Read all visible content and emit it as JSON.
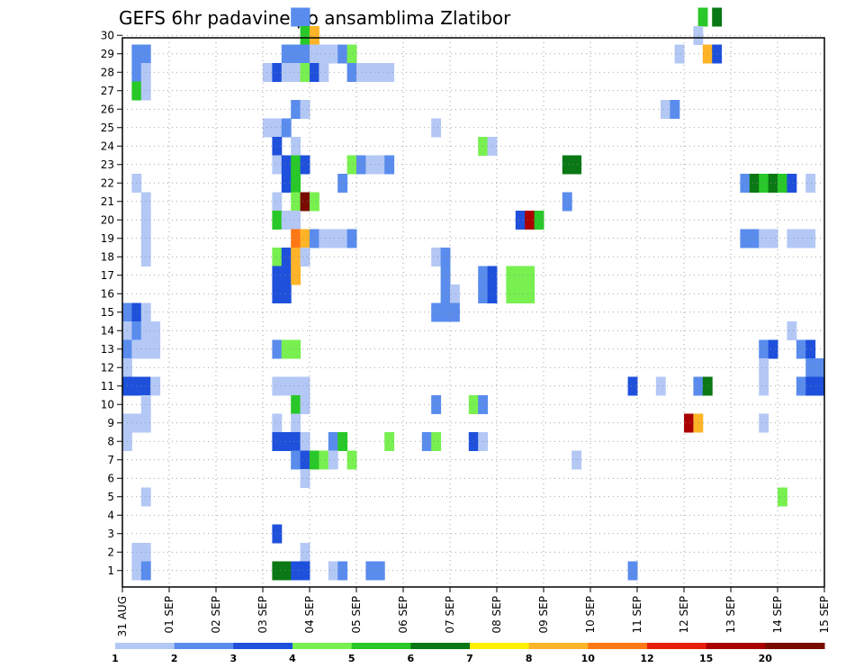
{
  "chart_data": {
    "type": "heatmap",
    "title": "GEFS 6hr padavine po ansamblima Zlatibor",
    "x_tick_labels": [
      "31 AUG",
      "01 SEP",
      "02 SEP",
      "03 SEP",
      "04 SEP",
      "05 SEP",
      "06 SEP",
      "07 SEP",
      "08 SEP",
      "09 SEP",
      "10 SEP",
      "11 SEP",
      "12 SEP",
      "13 SEP",
      "14 SEP",
      "15 SEP"
    ],
    "y_tick_labels": [
      "1",
      "2",
      "3",
      "4",
      "5",
      "6",
      "7",
      "8",
      "9",
      "10",
      "11",
      "12",
      "13",
      "14",
      "15",
      "16",
      "17",
      "18",
      "19",
      "20",
      "21",
      "22",
      "23",
      "24",
      "25",
      "26",
      "27",
      "28",
      "29",
      "30"
    ],
    "xlim": [
      0,
      15
    ],
    "ylim": [
      0,
      30
    ],
    "grid": true,
    "legend_placement": "bottom",
    "colorbar": {
      "labels": [
        "1",
        "2",
        "3",
        "4",
        "5",
        "6",
        "7",
        "8",
        "10",
        "12",
        "15",
        "20"
      ],
      "colors": [
        "#b4c8f5",
        "#5a8ced",
        "#1e50dc",
        "#78f050",
        "#28c828",
        "#0a7814",
        "#fff000",
        "#ffb428",
        "#ff7814",
        "#e61e0a",
        "#aa0000",
        "#780a00"
      ]
    },
    "values_note_units": "mm per 6h, class index into colorbar",
    "cells": [
      [
        30,
        3.6,
        2
      ],
      [
        30,
        3.8,
        2
      ],
      [
        30,
        12.3,
        5
      ],
      [
        30,
        12.6,
        6
      ],
      [
        29,
        3.8,
        5
      ],
      [
        29,
        4.0,
        8
      ],
      [
        29,
        12.2,
        1
      ],
      [
        28,
        0.2,
        2
      ],
      [
        28,
        0.4,
        2
      ],
      [
        28,
        3.4,
        2
      ],
      [
        28,
        3.6,
        2
      ],
      [
        28,
        3.8,
        2
      ],
      [
        28,
        4.0,
        1
      ],
      [
        28,
        4.2,
        1
      ],
      [
        28,
        4.4,
        1
      ],
      [
        28,
        4.6,
        2
      ],
      [
        28,
        4.8,
        4
      ],
      [
        28,
        11.8,
        1
      ],
      [
        28,
        12.4,
        8
      ],
      [
        28,
        12.6,
        3
      ],
      [
        27,
        0.2,
        2
      ],
      [
        27,
        0.4,
        1
      ],
      [
        27,
        3.0,
        1
      ],
      [
        27,
        3.2,
        3
      ],
      [
        27,
        3.4,
        1
      ],
      [
        27,
        3.6,
        1
      ],
      [
        27,
        3.8,
        4
      ],
      [
        27,
        4.0,
        3
      ],
      [
        27,
        4.2,
        1
      ],
      [
        27,
        4.8,
        2
      ],
      [
        27,
        5.0,
        1
      ],
      [
        27,
        5.2,
        1
      ],
      [
        27,
        5.4,
        1
      ],
      [
        27,
        5.6,
        1
      ],
      [
        26,
        0.2,
        5
      ],
      [
        26,
        0.4,
        1
      ],
      [
        25,
        3.6,
        2
      ],
      [
        25,
        3.8,
        1
      ],
      [
        25,
        11.5,
        1
      ],
      [
        25,
        11.7,
        2
      ],
      [
        24,
        3.0,
        1
      ],
      [
        24,
        3.2,
        1
      ],
      [
        24,
        3.4,
        2
      ],
      [
        24,
        6.6,
        1
      ],
      [
        23,
        3.2,
        3
      ],
      [
        23,
        3.6,
        1
      ],
      [
        23,
        7.6,
        4
      ],
      [
        23,
        7.8,
        1
      ],
      [
        22,
        3.2,
        1
      ],
      [
        22,
        3.4,
        3
      ],
      [
        22,
        3.6,
        5
      ],
      [
        22,
        3.8,
        3
      ],
      [
        22,
        4.8,
        4
      ],
      [
        22,
        5.0,
        2
      ],
      [
        22,
        5.2,
        1
      ],
      [
        22,
        5.4,
        1
      ],
      [
        22,
        5.6,
        2
      ],
      [
        22,
        9.4,
        6
      ],
      [
        22,
        9.6,
        6
      ],
      [
        21,
        0.2,
        1
      ],
      [
        21,
        3.4,
        3
      ],
      [
        21,
        3.6,
        5
      ],
      [
        21,
        4.6,
        2
      ],
      [
        21,
        13.2,
        2
      ],
      [
        21,
        13.4,
        6
      ],
      [
        21,
        13.6,
        5
      ],
      [
        21,
        13.8,
        6
      ],
      [
        21,
        14.0,
        5
      ],
      [
        21,
        14.2,
        3
      ],
      [
        21,
        14.6,
        1
      ],
      [
        20,
        0.4,
        1
      ],
      [
        20,
        3.2,
        1
      ],
      [
        20,
        3.6,
        4
      ],
      [
        20,
        3.8,
        12
      ],
      [
        20,
        4.0,
        4
      ],
      [
        20,
        9.4,
        2
      ],
      [
        19,
        0.4,
        1
      ],
      [
        19,
        3.2,
        5
      ],
      [
        19,
        3.4,
        1
      ],
      [
        19,
        3.6,
        1
      ],
      [
        19,
        8.4,
        3
      ],
      [
        19,
        8.6,
        11
      ],
      [
        19,
        8.8,
        5
      ],
      [
        18,
        0.4,
        1
      ],
      [
        18,
        3.6,
        9
      ],
      [
        18,
        3.8,
        8
      ],
      [
        18,
        4.0,
        2
      ],
      [
        18,
        4.2,
        1
      ],
      [
        18,
        4.4,
        1
      ],
      [
        18,
        4.6,
        1
      ],
      [
        18,
        4.8,
        2
      ],
      [
        18,
        13.2,
        2
      ],
      [
        18,
        13.4,
        2
      ],
      [
        18,
        13.6,
        1
      ],
      [
        18,
        13.8,
        1
      ],
      [
        18,
        14.2,
        1
      ],
      [
        18,
        14.4,
        1
      ],
      [
        18,
        14.6,
        1
      ],
      [
        17,
        0.4,
        1
      ],
      [
        17,
        3.2,
        4
      ],
      [
        17,
        3.4,
        3
      ],
      [
        17,
        3.6,
        8
      ],
      [
        17,
        3.8,
        1
      ],
      [
        17,
        6.6,
        1
      ],
      [
        17,
        6.8,
        2
      ],
      [
        16,
        3.2,
        3
      ],
      [
        16,
        3.4,
        3
      ],
      [
        16,
        3.6,
        8
      ],
      [
        16,
        6.8,
        2
      ],
      [
        16,
        7.6,
        2
      ],
      [
        16,
        7.8,
        3
      ],
      [
        16,
        8.2,
        4
      ],
      [
        16,
        8.4,
        4
      ],
      [
        16,
        8.6,
        4
      ],
      [
        15,
        3.2,
        3
      ],
      [
        15,
        3.4,
        3
      ],
      [
        15,
        6.8,
        2
      ],
      [
        15,
        7.0,
        1
      ],
      [
        15,
        7.6,
        2
      ],
      [
        15,
        7.8,
        3
      ],
      [
        15,
        8.2,
        4
      ],
      [
        15,
        8.4,
        4
      ],
      [
        15,
        8.6,
        4
      ],
      [
        14,
        0.0,
        2
      ],
      [
        14,
        0.2,
        3
      ],
      [
        14,
        0.4,
        1
      ],
      [
        14,
        6.6,
        2
      ],
      [
        14,
        6.8,
        2
      ],
      [
        14,
        7.0,
        2
      ],
      [
        13,
        0.0,
        1
      ],
      [
        13,
        0.2,
        2
      ],
      [
        13,
        0.4,
        1
      ],
      [
        13,
        0.6,
        1
      ],
      [
        13,
        14.2,
        1
      ],
      [
        12,
        0.0,
        2
      ],
      [
        12,
        0.2,
        1
      ],
      [
        12,
        0.4,
        1
      ],
      [
        12,
        0.6,
        1
      ],
      [
        12,
        3.2,
        2
      ],
      [
        12,
        3.4,
        4
      ],
      [
        12,
        3.6,
        4
      ],
      [
        12,
        13.6,
        2
      ],
      [
        12,
        13.8,
        3
      ],
      [
        12,
        14.4,
        2
      ],
      [
        12,
        14.6,
        3
      ],
      [
        11,
        0.0,
        1
      ],
      [
        11,
        13.6,
        1
      ],
      [
        11,
        14.6,
        2
      ],
      [
        11,
        14.8,
        2
      ],
      [
        10,
        0.0,
        3
      ],
      [
        10,
        0.2,
        3
      ],
      [
        10,
        0.4,
        3
      ],
      [
        10,
        0.6,
        1
      ],
      [
        10,
        3.2,
        1
      ],
      [
        10,
        3.4,
        1
      ],
      [
        10,
        3.6,
        1
      ],
      [
        10,
        3.8,
        1
      ],
      [
        10,
        10.8,
        3
      ],
      [
        10,
        11.4,
        1
      ],
      [
        10,
        12.2,
        2
      ],
      [
        10,
        12.4,
        6
      ],
      [
        10,
        13.6,
        1
      ],
      [
        10,
        14.4,
        2
      ],
      [
        10,
        14.6,
        3
      ],
      [
        10,
        14.8,
        3
      ],
      [
        9,
        0.4,
        1
      ],
      [
        9,
        3.6,
        5
      ],
      [
        9,
        3.8,
        1
      ],
      [
        9,
        6.6,
        2
      ],
      [
        9,
        7.4,
        4
      ],
      [
        9,
        7.6,
        2
      ],
      [
        8,
        0.0,
        1
      ],
      [
        8,
        0.2,
        1
      ],
      [
        8,
        0.4,
        1
      ],
      [
        8,
        3.2,
        1
      ],
      [
        8,
        3.6,
        1
      ],
      [
        8,
        12.0,
        11
      ],
      [
        8,
        12.2,
        8
      ],
      [
        8,
        13.6,
        1
      ],
      [
        7,
        0.0,
        1
      ],
      [
        7,
        3.2,
        3
      ],
      [
        7,
        3.4,
        3
      ],
      [
        7,
        3.6,
        3
      ],
      [
        7,
        3.8,
        1
      ],
      [
        7,
        4.4,
        2
      ],
      [
        7,
        4.6,
        5
      ],
      [
        7,
        5.6,
        4
      ],
      [
        7,
        6.4,
        2
      ],
      [
        7,
        6.6,
        4
      ],
      [
        7,
        7.4,
        3
      ],
      [
        7,
        7.6,
        1
      ],
      [
        6,
        3.6,
        2
      ],
      [
        6,
        3.8,
        3
      ],
      [
        6,
        4.0,
        5
      ],
      [
        6,
        4.2,
        4
      ],
      [
        6,
        4.4,
        1
      ],
      [
        6,
        4.8,
        4
      ],
      [
        6,
        9.6,
        1
      ],
      [
        5,
        3.8,
        1
      ],
      [
        4,
        0.4,
        1
      ],
      [
        4,
        14.0,
        4
      ],
      [
        2,
        3.2,
        3
      ],
      [
        1,
        0.2,
        1
      ],
      [
        1,
        0.4,
        1
      ],
      [
        1,
        3.8,
        1
      ],
      [
        0,
        0.2,
        1
      ],
      [
        0,
        0.4,
        2
      ],
      [
        0,
        3.2,
        6
      ],
      [
        0,
        3.4,
        6
      ],
      [
        0,
        3.6,
        3
      ],
      [
        0,
        3.8,
        3
      ],
      [
        0,
        4.4,
        1
      ],
      [
        0,
        4.6,
        2
      ],
      [
        0,
        5.2,
        2
      ],
      [
        0,
        5.4,
        2
      ],
      [
        0,
        10.8,
        2
      ]
    ]
  }
}
